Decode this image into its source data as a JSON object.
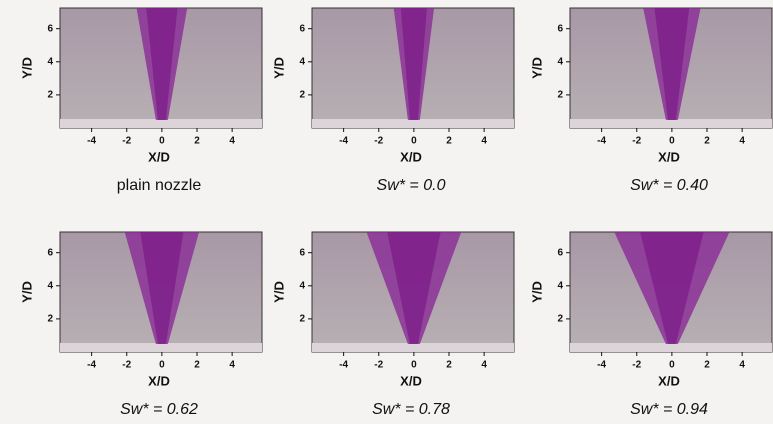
{
  "panels": [
    {
      "caption": "plain nozzle",
      "xlabel": "X/D",
      "ylabel": "Y/D",
      "xlim": [
        -5.8,
        5.7
      ],
      "ylim": [
        0,
        7.25
      ],
      "xticks": [
        -4,
        -2,
        0,
        2,
        4
      ],
      "yticks": [
        2,
        4,
        6
      ]
    },
    {
      "caption": "Sw* = 0.0",
      "xlabel": "X/D",
      "ylabel": "Y/D",
      "xlim": [
        -5.8,
        5.7
      ],
      "ylim": [
        0,
        7.25
      ],
      "xticks": [
        -4,
        -2,
        0,
        2,
        4
      ],
      "yticks": [
        2,
        4,
        6
      ]
    },
    {
      "caption": "Sw* = 0.40",
      "xlabel": "X/D",
      "ylabel": "Y/D",
      "xlim": [
        -5.8,
        5.7
      ],
      "ylim": [
        0,
        7.25
      ],
      "xticks": [
        -4,
        -2,
        0,
        2,
        4
      ],
      "yticks": [
        2,
        4,
        6
      ]
    },
    {
      "caption": "Sw* = 0.62",
      "xlabel": "X/D",
      "ylabel": "Y/D",
      "xlim": [
        -5.8,
        5.7
      ],
      "ylim": [
        0,
        7.25
      ],
      "xticks": [
        -4,
        -2,
        0,
        2,
        4
      ],
      "yticks": [
        2,
        4,
        6
      ]
    },
    {
      "caption": "Sw* = 0.78",
      "xlabel": "X/D",
      "ylabel": "Y/D",
      "xlim": [
        -5.8,
        5.7
      ],
      "ylim": [
        0,
        7.25
      ],
      "xticks": [
        -4,
        -2,
        0,
        2,
        4
      ],
      "yticks": [
        2,
        4,
        6
      ]
    },
    {
      "caption": "Sw* = 0.94",
      "xlabel": "X/D",
      "ylabel": "Y/D",
      "xlim": [
        -5.8,
        5.7
      ],
      "ylim": [
        0,
        7.25
      ],
      "xticks": [
        -4,
        -2,
        0,
        2,
        4
      ],
      "yticks": [
        2,
        4,
        6
      ]
    }
  ]
}
